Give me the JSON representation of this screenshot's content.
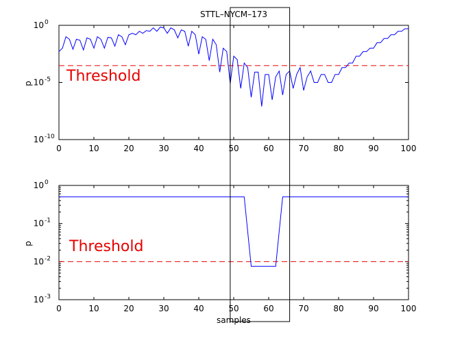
{
  "chart_data": [
    {
      "type": "line",
      "title": "STTL–NYCM–173",
      "ylabel": "p",
      "xlabel": "",
      "yscale": "log",
      "xlim": [
        0,
        100
      ],
      "ylim": [
        1e-10,
        1
      ],
      "x_ticks": [
        "0",
        "10",
        "20",
        "30",
        "40",
        "50",
        "60",
        "70",
        "80",
        "90",
        "100"
      ],
      "y_ticks": [
        {
          "base": "10",
          "exp": "0",
          "value": 1
        },
        {
          "base": "10",
          "exp": "-5",
          "value": 1e-05
        },
        {
          "base": "10",
          "exp": "-10",
          "value": 1e-10
        }
      ],
      "threshold": {
        "label": "Threshold",
        "value": 0.0003,
        "color": "#e60000"
      },
      "series": [
        {
          "color": "#0000ff",
          "x": [
            0,
            1,
            2,
            3,
            4,
            5,
            6,
            7,
            8,
            9,
            10,
            11,
            12,
            13,
            14,
            15,
            16,
            17,
            18,
            19,
            20,
            21,
            22,
            23,
            24,
            25,
            26,
            27,
            28,
            29,
            30,
            31,
            32,
            33,
            34,
            35,
            36,
            37,
            38,
            39,
            40,
            41,
            42,
            43,
            44,
            45,
            46,
            47,
            48,
            49,
            50,
            51,
            52,
            53,
            54,
            55,
            56,
            57,
            58,
            59,
            60,
            61,
            62,
            63,
            64,
            65,
            66,
            67,
            68,
            69,
            70,
            71,
            72,
            73,
            74,
            75,
            76,
            77,
            78,
            79,
            80,
            81,
            82,
            83,
            84,
            85,
            86,
            87,
            88,
            89,
            90,
            91,
            92,
            93,
            94,
            95,
            96,
            97,
            98,
            99,
            100
          ],
          "y": [
            0.005,
            0.01,
            0.1,
            0.06,
            0.008,
            0.06,
            0.05,
            0.007,
            0.08,
            0.06,
            0.01,
            0.1,
            0.06,
            0.01,
            0.09,
            0.08,
            0.015,
            0.15,
            0.1,
            0.02,
            0.15,
            0.2,
            0.15,
            0.3,
            0.2,
            0.35,
            0.3,
            0.6,
            0.3,
            0.7,
            0.6,
            0.2,
            0.6,
            0.4,
            0.08,
            0.4,
            0.3,
            0.015,
            0.3,
            0.15,
            0.003,
            0.1,
            0.06,
            0.0008,
            0.06,
            0.02,
            8e-05,
            0.01,
            0.005,
            8e-06,
            0.002,
            0.001,
            3e-06,
            0.0005,
            0.0002,
            5e-07,
            8e-05,
            8e-05,
            8e-08,
            5e-05,
            5e-05,
            3e-07,
            3e-05,
            0.0001,
            8e-07,
            5e-05,
            0.0001,
            3e-06,
            5e-05,
            0.0002,
            2e-06,
            3e-05,
            0.0001,
            1e-05,
            1e-05,
            5e-05,
            5e-05,
            1e-05,
            1e-05,
            5e-05,
            5e-05,
            0.0002,
            0.0002,
            0.0005,
            0.0005,
            0.002,
            0.002,
            0.005,
            0.005,
            0.01,
            0.01,
            0.03,
            0.03,
            0.07,
            0.07,
            0.15,
            0.15,
            0.3,
            0.3,
            0.5,
            0.5
          ]
        }
      ],
      "highlight_x_range": [
        49,
        66
      ]
    },
    {
      "type": "line",
      "title": "",
      "ylabel": "p",
      "xlabel": "samples",
      "yscale": "log",
      "xlim": [
        0,
        100
      ],
      "ylim": [
        0.001,
        1
      ],
      "x_ticks": [
        "0",
        "10",
        "20",
        "30",
        "40",
        "50",
        "60",
        "70",
        "80",
        "90",
        "100"
      ],
      "y_ticks": [
        {
          "base": "10",
          "exp": "0",
          "value": 1
        },
        {
          "base": "10",
          "exp": "-1",
          "value": 0.1
        },
        {
          "base": "10",
          "exp": "-2",
          "value": 0.01
        },
        {
          "base": "10",
          "exp": "-3",
          "value": 0.001
        }
      ],
      "threshold": {
        "label": "Threshold",
        "value": 0.01,
        "color": "#e60000"
      },
      "series": [
        {
          "color": "#0000ff",
          "x": [
            0,
            53,
            55,
            62,
            64,
            100
          ],
          "y": [
            0.5,
            0.5,
            0.0075,
            0.0075,
            0.5,
            0.5
          ]
        }
      ],
      "highlight_x_range": [
        49,
        66
      ]
    }
  ]
}
